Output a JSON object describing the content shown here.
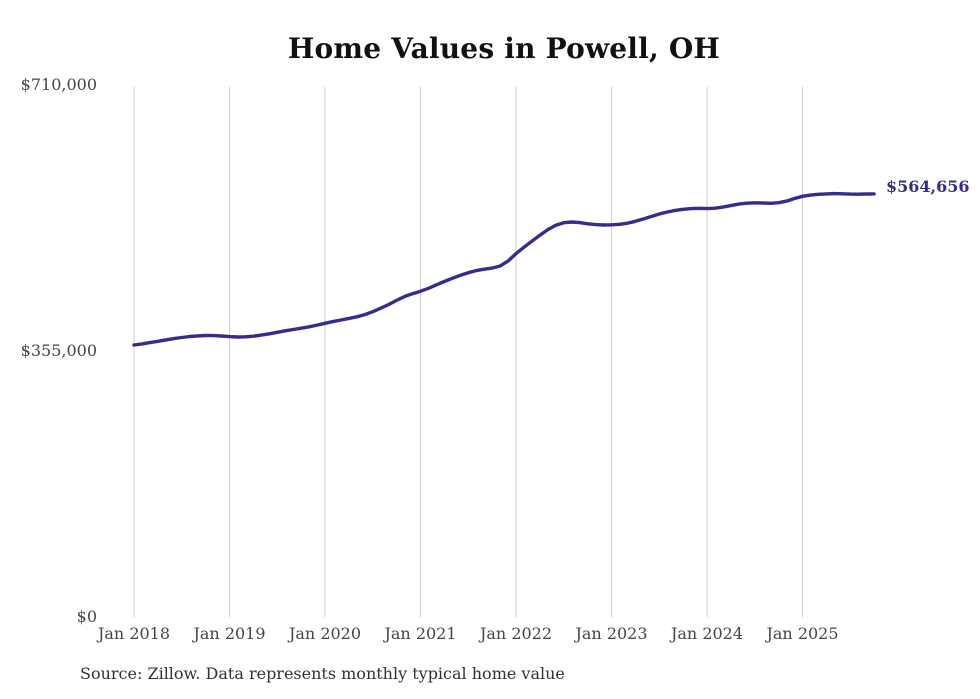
{
  "title": "Home Values in Powell, OH",
  "source_note": "Source: Zillow. Data represents monthly typical home value",
  "end_label": "$564,656",
  "colors": {
    "line": "#332e8b",
    "grid": "#cdcdcd",
    "title_text": "#111111",
    "axis_text": "#454545",
    "background": "#ffffff"
  },
  "y_axis": {
    "labels": [
      {
        "text": "$710,000",
        "value": 710000
      },
      {
        "text": "$355,000",
        "value": 355000
      },
      {
        "text": "$0",
        "value": 0
      }
    ]
  },
  "chart_data": {
    "type": "line",
    "title": "Home Values in Powell, OH",
    "xlabel": "",
    "ylabel": "",
    "ylim": [
      0,
      710000
    ],
    "y_ticks": [
      0,
      355000,
      710000
    ],
    "grid": "vertical-only",
    "legend": "none",
    "x_tick_labels": [
      "Jan 2018",
      "Jan 2019",
      "Jan 2020",
      "Jan 2021",
      "Jan 2022",
      "Jan 2023",
      "Jan 2024",
      "Jan 2025"
    ],
    "x_start_month": "2018-01",
    "x_end_month": "2025-10",
    "end_value": 564656,
    "series": [
      {
        "name": "Typical home value",
        "monthly_values": [
          363000,
          364500,
          366200,
          368000,
          369800,
          371500,
          373000,
          374300,
          375200,
          375700,
          375600,
          375000,
          374200,
          373700,
          373900,
          374800,
          376200,
          378000,
          380000,
          381900,
          383700,
          385400,
          387300,
          389500,
          392000,
          394200,
          396400,
          398500,
          400700,
          403600,
          407500,
          412100,
          417100,
          422500,
          427800,
          431500,
          434800,
          438700,
          443300,
          447800,
          452000,
          456000,
          459500,
          462300,
          464200,
          465600,
          468500,
          475000,
          485000,
          493500,
          501500,
          509500,
          517000,
          522800,
          526200,
          527200,
          526300,
          524800,
          523700,
          523200,
          523400,
          524100,
          525600,
          528100,
          531100,
          534500,
          537800,
          540500,
          542600,
          544100,
          545100,
          545400,
          545100,
          545600,
          547100,
          549100,
          551000,
          552200,
          552800,
          552500,
          552100,
          552900,
          555100,
          558500,
          561500,
          563100,
          564100,
          564700,
          565000,
          564800,
          564400,
          564300,
          564500,
          564656
        ]
      }
    ]
  }
}
